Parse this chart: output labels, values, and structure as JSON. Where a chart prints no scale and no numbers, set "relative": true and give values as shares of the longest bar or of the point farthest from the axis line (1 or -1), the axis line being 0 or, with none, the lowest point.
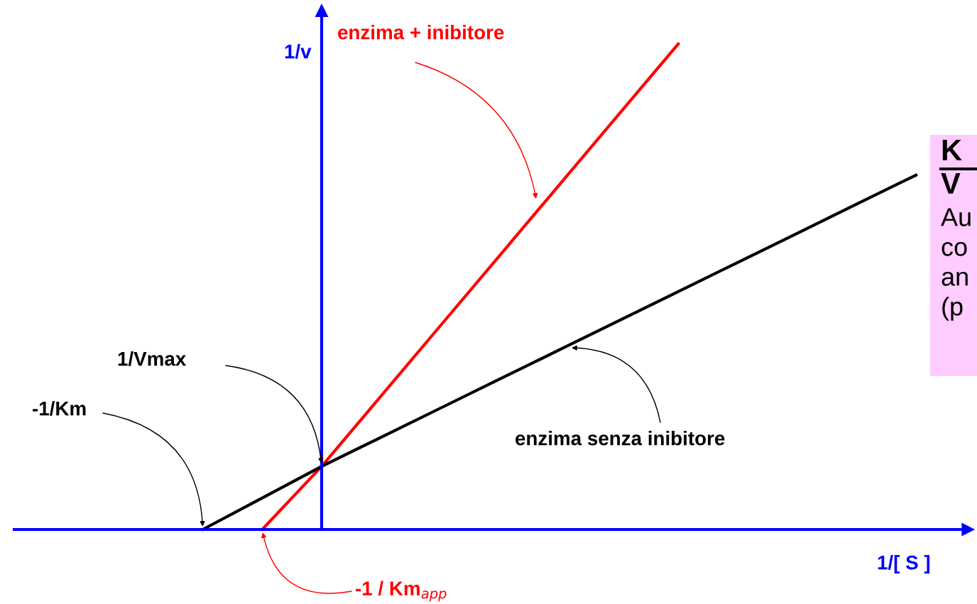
{
  "chart_data": {
    "type": "line",
    "relative": true,
    "xlabel": "1/[ S ]",
    "ylabel": "1/v",
    "marker": "none",
    "line_style": "solid",
    "categories": [
      null,
      null,
      null,
      null,
      null,
      null,
      null,
      null,
      null,
      null,
      null,
      null,
      null
    ],
    "series": [
      {
        "name": "enzima + inibitore",
        "color": "#ff0000",
        "values": [
          null,
          0,
          0.13,
          0.275,
          0.42,
          0.565,
          0.71,
          0.855,
          1.0,
          null,
          null,
          null,
          null
        ]
      },
      {
        "name": "enzima senza inibitore",
        "color": "#000000",
        "values": [
          0,
          0.065,
          0.13,
          0.19,
          0.25,
          0.31,
          0.37,
          0.43,
          0.49,
          0.55,
          0.61,
          0.67,
          0.73
        ]
      }
    ],
    "annotations": [
      "1/Vmax",
      "-1/Km",
      "-1 / Km$_{app}$",
      "K",
      "V",
      "Au",
      "co",
      "an",
      "(p"
    ]
  }
}
